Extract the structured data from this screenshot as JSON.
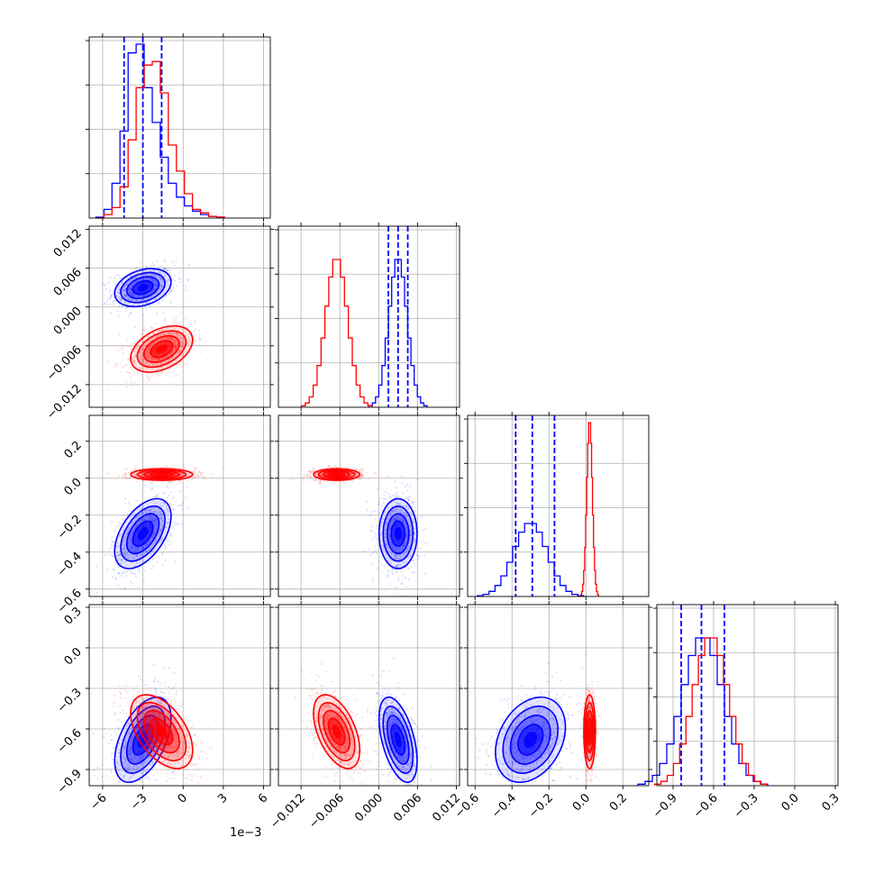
{
  "chart_data": {
    "type": "corner",
    "title": "",
    "axis_offset_label": "1e−3",
    "grid": true,
    "colors": {
      "series_a": "#0000ff",
      "series_b": "#ff0000"
    },
    "parameters": [
      {
        "range": [
          -7,
          6.5
        ],
        "ticks": [
          -6,
          -3,
          0,
          3,
          6
        ],
        "tick_labels": [
          "−6",
          "−3",
          "0",
          "3",
          "6"
        ],
        "label": ""
      },
      {
        "range": [
          -0.0155,
          0.0125
        ],
        "ticks": [
          -0.012,
          -0.006,
          0.0,
          0.006,
          0.012
        ],
        "tick_labels": [
          "−0.012",
          "−0.006",
          "0.000",
          "0.006",
          "0.012"
        ],
        "label": ""
      },
      {
        "range": [
          -0.64,
          0.34
        ],
        "ticks": [
          -0.6,
          -0.4,
          -0.2,
          0.0,
          0.2
        ],
        "tick_labels": [
          "−0.6",
          "−0.4",
          "−0.2",
          "0.0",
          "0.2"
        ],
        "label": ""
      },
      {
        "range": [
          -1.02,
          0.32
        ],
        "ticks": [
          -0.9,
          -0.6,
          -0.3,
          0.0,
          0.3
        ],
        "tick_labels": [
          "−0.9",
          "−0.6",
          "−0.3",
          "0.0",
          "0.3"
        ],
        "label": ""
      }
    ],
    "series": [
      {
        "color": "#0000ff",
        "means": [
          -3.0,
          0.003,
          -0.3,
          -0.68
        ],
        "sds": [
          1.0,
          0.0014,
          0.09,
          0.15
        ],
        "correlations": [
          [
            0,
            1,
            0.3
          ],
          [
            0,
            2,
            0.5
          ],
          [
            0,
            3,
            0.5
          ],
          [
            1,
            2,
            0.0
          ],
          [
            1,
            3,
            -0.5
          ],
          [
            2,
            3,
            0.3
          ]
        ],
        "quantiles": [
          [
            -4.4,
            -3.0,
            -1.6
          ],
          [
            0.0015,
            0.003,
            0.0045
          ],
          [
            -0.38,
            -0.29,
            -0.17
          ],
          [
            -0.84,
            -0.69,
            -0.52
          ]
        ]
      },
      {
        "color": "#ff0000",
        "means": [
          -1.6,
          -0.0065,
          0.02,
          -0.62
        ],
        "sds": [
          1.1,
          0.0017,
          0.015,
          0.13
        ],
        "correlations": [
          [
            0,
            1,
            0.4
          ],
          [
            0,
            2,
            0.0
          ],
          [
            0,
            3,
            -0.5
          ],
          [
            1,
            2,
            0.0
          ],
          [
            1,
            3,
            -0.5
          ],
          [
            2,
            3,
            0.0
          ]
        ],
        "quantiles": []
      }
    ],
    "histograms": {
      "x_index_0": {
        "blue": [
          0.005,
          0.05,
          0.2,
          0.5,
          0.95,
          1.0,
          0.75,
          0.55,
          0.35,
          0.2,
          0.12,
          0.07,
          0.04,
          0.02,
          0.01,
          0.005
        ],
        "red": [
          0.0,
          0.02,
          0.06,
          0.18,
          0.45,
          0.75,
          0.88,
          0.9,
          0.72,
          0.42,
          0.27,
          0.14,
          0.05,
          0.03,
          0.01,
          0.005
        ],
        "bin_edges": [
          -6.5,
          -5.9,
          -5.3,
          -4.7,
          -4.1,
          -3.5,
          -2.9,
          -2.3,
          -1.7,
          -1.1,
          -0.5,
          0.1,
          0.7,
          1.3,
          1.9,
          2.5,
          3.1
        ]
      }
    }
  }
}
